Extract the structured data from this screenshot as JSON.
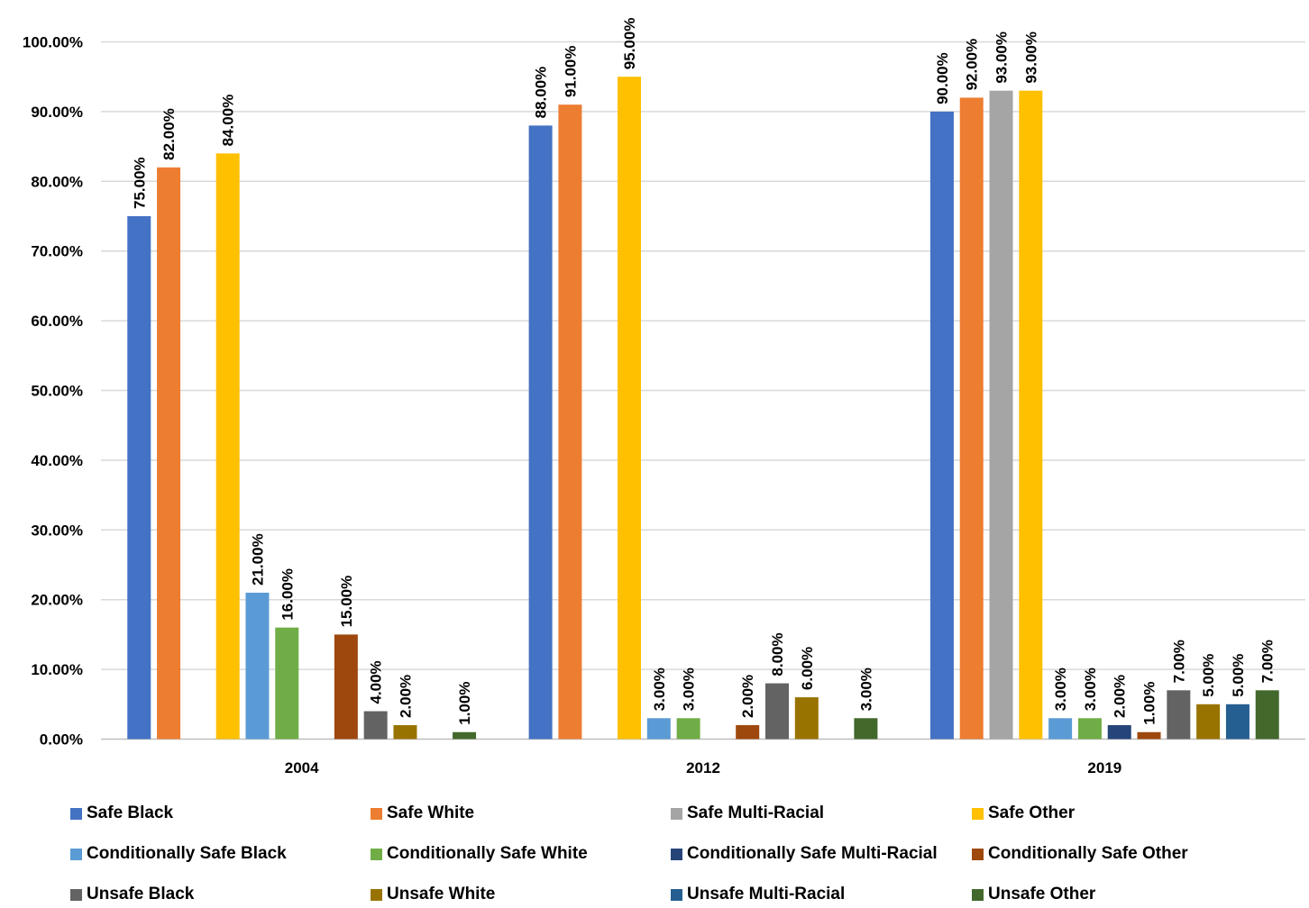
{
  "chart_data": {
    "type": "bar",
    "categories": [
      "2004",
      "2012",
      "2019"
    ],
    "ylim": [
      0,
      100
    ],
    "yticks": [
      "0.00%",
      "10.00%",
      "20.00%",
      "30.00%",
      "40.00%",
      "50.00%",
      "60.00%",
      "70.00%",
      "80.00%",
      "90.00%",
      "100.00%"
    ],
    "grid": true,
    "legend_position": "bottom",
    "series": [
      {
        "name": "Safe Black",
        "color": "#4472C4",
        "values": [
          75,
          88,
          90
        ],
        "labels": [
          "75.00%",
          "88.00%",
          "90.00%"
        ]
      },
      {
        "name": "Safe White",
        "color": "#ED7D31",
        "values": [
          82,
          91,
          92
        ],
        "labels": [
          "82.00%",
          "91.00%",
          "92.00%"
        ]
      },
      {
        "name": "Safe Multi-Racial",
        "color": "#A5A5A5",
        "values": [
          null,
          null,
          93
        ],
        "labels": [
          "",
          "",
          "93.00%"
        ]
      },
      {
        "name": "Safe Other",
        "color": "#FFC000",
        "values": [
          84,
          95,
          93
        ],
        "labels": [
          "84.00%",
          "95.00%",
          "93.00%"
        ]
      },
      {
        "name": "Conditionally Safe Black",
        "color": "#5B9BD5",
        "values": [
          21,
          3,
          3
        ],
        "labels": [
          "21.00%",
          "3.00%",
          "3.00%"
        ]
      },
      {
        "name": "Conditionally Safe White",
        "color": "#70AD47",
        "values": [
          16,
          3,
          3
        ],
        "labels": [
          "16.00%",
          "3.00%",
          "3.00%"
        ]
      },
      {
        "name": "Conditionally Safe Multi-Racial",
        "color": "#264478",
        "values": [
          null,
          null,
          2
        ],
        "labels": [
          "",
          "",
          "2.00%"
        ]
      },
      {
        "name": "Conditionally Safe Other",
        "color": "#9E480E",
        "values": [
          15,
          2,
          1
        ],
        "labels": [
          "15.00%",
          "2.00%",
          "1.00%"
        ]
      },
      {
        "name": "Unsafe Black",
        "color": "#636363",
        "values": [
          4,
          8,
          7
        ],
        "labels": [
          "4.00%",
          "8.00%",
          "7.00%"
        ]
      },
      {
        "name": "Unsafe White",
        "color": "#997300",
        "values": [
          2,
          6,
          5
        ],
        "labels": [
          "2.00%",
          "6.00%",
          "5.00%"
        ]
      },
      {
        "name": "Unsafe Multi-Racial",
        "color": "#255E91",
        "values": [
          null,
          null,
          5
        ],
        "labels": [
          "",
          "",
          "5.00%"
        ]
      },
      {
        "name": "Unsafe Other",
        "color": "#43682B",
        "values": [
          1,
          3,
          7
        ],
        "labels": [
          "1.00%",
          "3.00%",
          "7.00%"
        ]
      }
    ]
  }
}
